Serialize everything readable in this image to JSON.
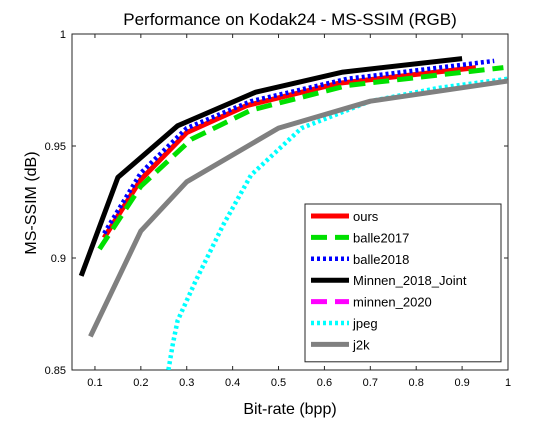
{
  "chart_data": {
    "type": "line",
    "title": "Performance on Kodak24 - MS-SSIM (RGB)",
    "xlabel": "Bit-rate (bpp)",
    "ylabel": "MS-SSIM (dB)",
    "xlim": [
      0.05,
      1.0
    ],
    "ylim": [
      0.85,
      1.0
    ],
    "xticks": [
      0.1,
      0.2,
      0.3,
      0.4,
      0.5,
      0.6,
      0.7,
      0.8,
      0.9,
      1
    ],
    "xtick_labels": [
      "0.1",
      "0.2",
      "0.3",
      "0.4",
      "0.5",
      "0.6",
      "0.7",
      "0.8",
      "0.9",
      "1"
    ],
    "yticks": [
      0.85,
      0.9,
      0.95,
      1
    ],
    "ytick_labels": [
      "0.85",
      "0.9",
      "0.95",
      "1"
    ],
    "grid": false,
    "legend_position": "lower-right",
    "series": [
      {
        "name": "ours",
        "color": "#ff0000",
        "style": "solid",
        "x": [
          0.12,
          0.2,
          0.3,
          0.43,
          0.63,
          0.93
        ],
        "y": [
          0.909,
          0.935,
          0.956,
          0.968,
          0.978,
          0.985
        ]
      },
      {
        "name": "balle2017",
        "color": "#00e000",
        "style": "dashed",
        "x": [
          0.11,
          0.2,
          0.31,
          0.44,
          0.65,
          0.99
        ],
        "y": [
          0.904,
          0.932,
          0.953,
          0.966,
          0.977,
          0.985
        ]
      },
      {
        "name": "balle2018",
        "color": "#0000ff",
        "style": "dotted",
        "x": [
          0.12,
          0.2,
          0.3,
          0.44,
          0.65,
          0.97
        ],
        "y": [
          0.911,
          0.938,
          0.958,
          0.97,
          0.98,
          0.988
        ]
      },
      {
        "name": "Minnen_2018_Joint",
        "color": "#000000",
        "style": "solid",
        "x": [
          0.07,
          0.15,
          0.28,
          0.45,
          0.64,
          0.9
        ],
        "y": [
          0.892,
          0.936,
          0.959,
          0.974,
          0.983,
          0.989
        ]
      },
      {
        "name": "minnen_2020",
        "color": "#ff00ff",
        "style": "dashed",
        "x": [],
        "y": []
      },
      {
        "name": "jpeg",
        "color": "#00ffff",
        "style": "dotted",
        "x": [
          0.26,
          0.27,
          0.28,
          0.32,
          0.38,
          0.44,
          0.55,
          0.7,
          0.85,
          1.0
        ],
        "y": [
          0.85,
          0.862,
          0.872,
          0.89,
          0.915,
          0.937,
          0.958,
          0.97,
          0.976,
          0.98
        ]
      },
      {
        "name": "j2k",
        "color": "#808080",
        "style": "solid",
        "x": [
          0.09,
          0.2,
          0.3,
          0.5,
          0.7,
          1.0
        ],
        "y": [
          0.865,
          0.912,
          0.934,
          0.958,
          0.97,
          0.979
        ]
      }
    ]
  }
}
